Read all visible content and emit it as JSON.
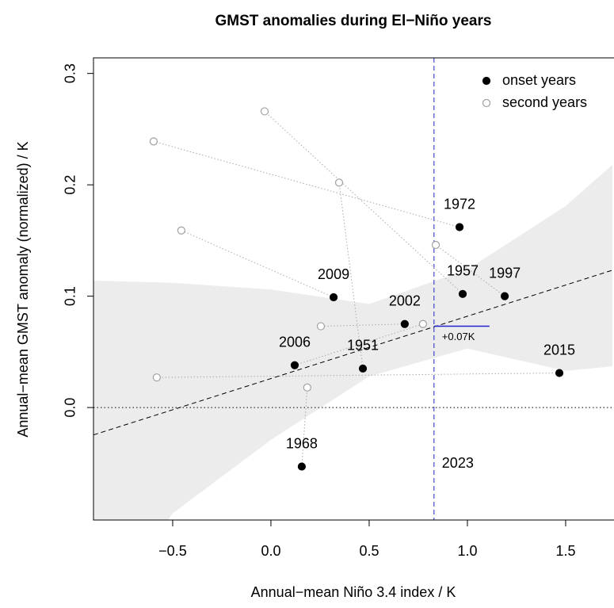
{
  "chart_data": {
    "type": "scatter",
    "title": "GMST anomalies during El−Niño years",
    "x_label": "Annual−mean Niño 3.4 index / K",
    "y_label": "Annual−mean GMST anomaly (normalized) / K",
    "xlim": [
      -0.903,
      1.738
    ],
    "ylim": [
      -0.101,
      0.314
    ],
    "xticks": [
      {
        "value": -0.5,
        "label": "−0.5"
      },
      {
        "value": 0,
        "label": "0.0"
      },
      0.5,
      {
        "value": 1,
        "label": "1.0"
      },
      1.5
    ],
    "yticks": [
      {
        "value": 0,
        "label": "0.0"
      },
      0.1,
      0.2,
      0.3
    ],
    "zero_line": true,
    "legend": "top-right",
    "series": [
      {
        "name": "onset years",
        "color": "#000000",
        "marker": "filled",
        "labels": [
          "1972",
          "1957",
          "1997",
          "2009",
          "2002",
          "2006",
          "1951",
          "2015",
          "1968"
        ],
        "x": [
          0.96,
          0.976,
          1.19,
          0.319,
          0.681,
          0.121,
          0.468,
          1.468,
          0.157
        ],
        "values": [
          0.162,
          0.102,
          0.1,
          0.099,
          0.075,
          0.038,
          0.035,
          0.031,
          -0.053
        ]
      },
      {
        "name": "second years",
        "color": "#a0a0a0",
        "marker": "open",
        "x": [
          -0.597,
          -0.032,
          0.839,
          -0.456,
          0.254,
          0.774,
          0.347,
          -0.581,
          0.185
        ],
        "values": [
          0.239,
          0.266,
          0.146,
          0.159,
          0.073,
          0.075,
          0.202,
          0.027,
          0.018
        ]
      }
    ],
    "fit": {
      "intercept": 0.026,
      "slope": 0.056
    },
    "band": {
      "x": [
        -0.903,
        -0.5,
        0,
        0.5,
        1,
        1.5,
        1.738
      ],
      "lower": [
        -0.2,
        -0.095,
        -0.029,
        0.028,
        0.053,
        0.033,
        0.037
      ],
      "upper": [
        0.114,
        0.112,
        0.106,
        0.093,
        0.124,
        0.181,
        0.218
      ]
    },
    "reference": {
      "x": 0.83,
      "label": "2023",
      "color": "#2222cc",
      "offset": 0.073,
      "offset_label": "+0.07K"
    }
  }
}
